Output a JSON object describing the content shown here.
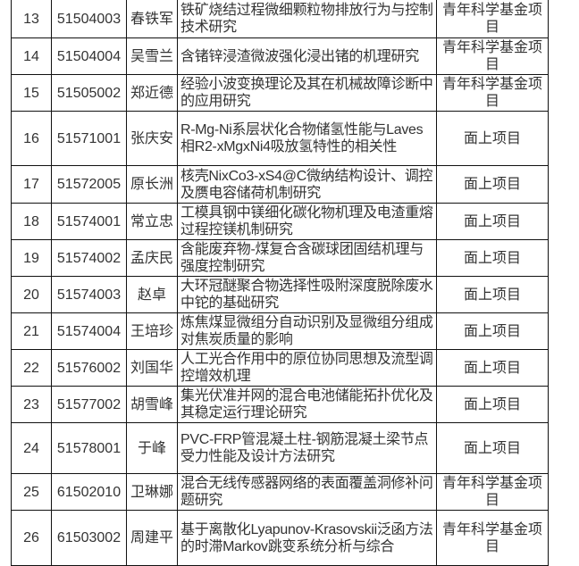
{
  "rows": [
    {
      "no": "13",
      "code": "51504003",
      "name": "春铁军",
      "title": "铁矿烧结过程微细颗粒物排放行为与控制技术研究",
      "type": "青年科学基金项目"
    },
    {
      "no": "14",
      "code": "51504004",
      "name": "吴雪兰",
      "title": "含锗锌浸渣微波强化浸出锗的机理研究",
      "type": "青年科学基金项目"
    },
    {
      "no": "15",
      "code": "51505002",
      "name": "郑近德",
      "title": "经验小波变换理论及其在机械故障诊断中的应用研究",
      "type": "青年科学基金项目"
    },
    {
      "no": "16",
      "code": "51571001",
      "name": "张庆安",
      "title": "R-Mg-Ni系层状化合物储氢性能与Laves相R2-xMgxNi4吸放氢特性的相关性",
      "type": "面上项目"
    },
    {
      "no": "17",
      "code": "51572005",
      "name": "原长洲",
      "title": "核壳NixCo3-xS4@C微纳结构设计、调控及赝电容储荷机制研究",
      "type": "面上项目"
    },
    {
      "no": "18",
      "code": "51574001",
      "name": "常立忠",
      "title": "工模具钢中镁细化碳化物机理及电渣重熔过程控镁机制研究",
      "type": "面上项目"
    },
    {
      "no": "19",
      "code": "51574002",
      "name": "孟庆民",
      "title": "含能废弃物-煤复合含碳球团固结机理与强度控制研究",
      "type": "面上项目"
    },
    {
      "no": "20",
      "code": "51574003",
      "name": "赵卓",
      "title": "大环冠醚聚合物选择性吸附深度脱除废水中铊的基础研究",
      "type": "面上项目"
    },
    {
      "no": "21",
      "code": "51574004",
      "name": "王培珍",
      "title": "炼焦煤显微组分自动识别及显微组分组成对焦炭质量的影响",
      "type": "面上项目"
    },
    {
      "no": "22",
      "code": "51576002",
      "name": "刘国华",
      "title": "人工光合作用中的原位协同思想及流型调控增效机理",
      "type": "面上项目"
    },
    {
      "no": "23",
      "code": "51577002",
      "name": "胡雪峰",
      "title": "集光伏准并网的混合电池储能拓扑优化及其稳定运行理论研究",
      "type": "面上项目"
    },
    {
      "no": "24",
      "code": "51578001",
      "name": "于峰",
      "title": "PVC-FRP管混凝土柱-钢筋混凝土梁节点受力性能及设计方法研究",
      "type": "面上项目"
    },
    {
      "no": "25",
      "code": "61502010",
      "name": "卫琳娜",
      "title": "混合无线传感器网络的表面覆盖洞修补问题研究",
      "type": "青年科学基金项目"
    },
    {
      "no": "26",
      "code": "61503002",
      "name": "周建平",
      "title": "基于离散化Lyapunov-Krasovskii泛函方法的时滞Markov跳变系统分析与综合",
      "type": "青年科学基金项目"
    }
  ]
}
